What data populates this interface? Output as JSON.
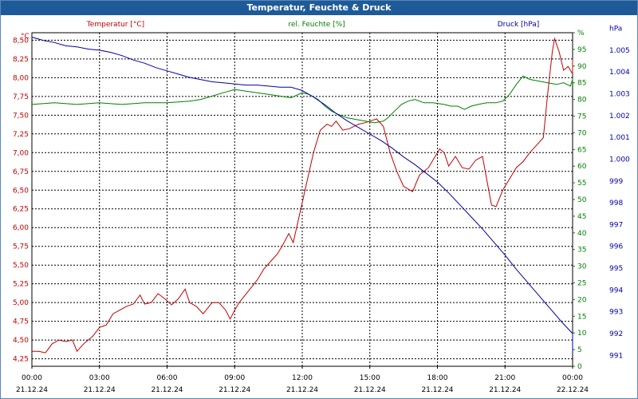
{
  "window": {
    "title": "Temperatur, Feuchte & Druck"
  },
  "colors": {
    "temperature": "#c00000",
    "humidity": "#008000",
    "pressure": "#0000aa",
    "grid": "#000000",
    "titlebar": "#1f5a98"
  },
  "chart_data": {
    "type": "line",
    "title": "Temperatur, Feuchte & Druck",
    "x_ticks": [
      {
        "time": "00:00",
        "date": "21.12.24"
      },
      {
        "time": "03:00",
        "date": "21.12.24"
      },
      {
        "time": "06:00",
        "date": "21.12.24"
      },
      {
        "time": "09:00",
        "date": "21.12.24"
      },
      {
        "time": "12:00",
        "date": "21.12.24"
      },
      {
        "time": "15:00",
        "date": "21.12.24"
      },
      {
        "time": "18:00",
        "date": "21.12.24"
      },
      {
        "time": "21:00",
        "date": "21.12.24"
      },
      {
        "time": "00:00",
        "date": "22.12.24"
      }
    ],
    "x_range_hours": [
      0,
      24
    ],
    "axes": {
      "temperature": {
        "label": "Temperatur [°C]",
        "unit": "°C",
        "range": [
          4.15,
          8.6
        ],
        "ticks": [
          "4,25",
          "4,50",
          "4,75",
          "5,00",
          "5,25",
          "5,50",
          "5,75",
          "6,00",
          "6,25",
          "6,50",
          "6,75",
          "7,00",
          "7,25",
          "7,50",
          "7,75",
          "8,00",
          "8,25",
          "8,50"
        ]
      },
      "humidity": {
        "label": "rel. Feuchte [%]",
        "unit": "%",
        "range": [
          0,
          100
        ],
        "ticks": [
          "0",
          "5",
          "10",
          "15",
          "20",
          "25",
          "30",
          "35",
          "40",
          "45",
          "50",
          "55",
          "60",
          "65",
          "70",
          "75",
          "80",
          "85",
          "90",
          "95",
          "%"
        ]
      },
      "pressure": {
        "label": "Druck [hPa]",
        "unit": "hPa",
        "range": [
          990.5,
          1005.8
        ],
        "ticks": [
          "991",
          "992",
          "993",
          "994",
          "995",
          "996",
          "997",
          "998",
          "999",
          "1.000",
          "1.001",
          "1.002",
          "1.003",
          "1.004",
          "1.005",
          "hPa"
        ]
      }
    },
    "series": [
      {
        "name": "Temperatur",
        "axis": "temperature",
        "points": [
          [
            0,
            4.35
          ],
          [
            0.3,
            4.35
          ],
          [
            0.6,
            4.33
          ],
          [
            0.9,
            4.45
          ],
          [
            1.2,
            4.5
          ],
          [
            1.5,
            4.48
          ],
          [
            1.8,
            4.5
          ],
          [
            2.0,
            4.35
          ],
          [
            2.3,
            4.45
          ],
          [
            2.7,
            4.55
          ],
          [
            3.0,
            4.67
          ],
          [
            3.3,
            4.7
          ],
          [
            3.6,
            4.85
          ],
          [
            3.9,
            4.9
          ],
          [
            4.2,
            4.95
          ],
          [
            4.5,
            4.98
          ],
          [
            4.8,
            5.1
          ],
          [
            5.0,
            4.98
          ],
          [
            5.3,
            5.0
          ],
          [
            5.6,
            5.12
          ],
          [
            5.9,
            5.05
          ],
          [
            6.2,
            4.97
          ],
          [
            6.5,
            5.05
          ],
          [
            6.8,
            5.18
          ],
          [
            7.0,
            5.0
          ],
          [
            7.3,
            4.95
          ],
          [
            7.6,
            4.85
          ],
          [
            8.0,
            5.0
          ],
          [
            8.3,
            5.0
          ],
          [
            8.6,
            4.9
          ],
          [
            8.8,
            4.78
          ],
          [
            9.0,
            4.9
          ],
          [
            9.2,
            5.0
          ],
          [
            9.6,
            5.15
          ],
          [
            10.0,
            5.3
          ],
          [
            10.3,
            5.45
          ],
          [
            10.6,
            5.55
          ],
          [
            10.9,
            5.65
          ],
          [
            11.1,
            5.75
          ],
          [
            11.4,
            5.92
          ],
          [
            11.6,
            5.8
          ],
          [
            11.9,
            6.2
          ],
          [
            12.2,
            6.6
          ],
          [
            12.5,
            7.0
          ],
          [
            12.8,
            7.3
          ],
          [
            13.1,
            7.38
          ],
          [
            13.3,
            7.35
          ],
          [
            13.5,
            7.42
          ],
          [
            13.8,
            7.3
          ],
          [
            14.1,
            7.32
          ],
          [
            14.5,
            7.38
          ],
          [
            14.8,
            7.4
          ],
          [
            15.0,
            7.42
          ],
          [
            15.3,
            7.45
          ],
          [
            15.6,
            7.35
          ],
          [
            15.9,
            7.0
          ],
          [
            16.2,
            6.75
          ],
          [
            16.5,
            6.55
          ],
          [
            16.9,
            6.48
          ],
          [
            17.2,
            6.7
          ],
          [
            17.6,
            6.8
          ],
          [
            17.9,
            6.95
          ],
          [
            18.1,
            7.05
          ],
          [
            18.3,
            7.0
          ],
          [
            18.5,
            6.82
          ],
          [
            18.8,
            6.95
          ],
          [
            19.1,
            6.8
          ],
          [
            19.4,
            6.78
          ],
          [
            19.7,
            6.9
          ],
          [
            20.0,
            6.95
          ],
          [
            20.4,
            6.3
          ],
          [
            20.6,
            6.28
          ],
          [
            20.9,
            6.5
          ],
          [
            21.2,
            6.65
          ],
          [
            21.5,
            6.8
          ],
          [
            21.8,
            6.88
          ],
          [
            22.1,
            7.0
          ],
          [
            22.4,
            7.1
          ],
          [
            22.7,
            7.2
          ],
          [
            22.9,
            7.8
          ],
          [
            23.1,
            8.35
          ],
          [
            23.2,
            8.52
          ],
          [
            23.4,
            8.35
          ],
          [
            23.6,
            8.1
          ],
          [
            23.8,
            8.15
          ],
          [
            24.1,
            8.05
          ],
          [
            24.3,
            8.05
          ],
          [
            24.5,
            8.05
          ],
          [
            24.7,
            8.1
          ],
          [
            24.8,
            8.25
          ]
        ]
      },
      {
        "name": "rel. Feuchte",
        "axis": "humidity",
        "points": [
          [
            0,
            78.5
          ],
          [
            1.0,
            79.0
          ],
          [
            2.0,
            78.5
          ],
          [
            3.0,
            79.0
          ],
          [
            4.0,
            78.5
          ],
          [
            5.0,
            79.0
          ],
          [
            6.0,
            79.0
          ],
          [
            7.0,
            79.5
          ],
          [
            7.5,
            80.0
          ],
          [
            8.0,
            81.0
          ],
          [
            8.5,
            82.0
          ],
          [
            9.0,
            83.0
          ],
          [
            9.5,
            82.5
          ],
          [
            10.0,
            82.0
          ],
          [
            10.5,
            81.5
          ],
          [
            11.0,
            81.0
          ],
          [
            11.5,
            80.5
          ],
          [
            12.0,
            82.0
          ],
          [
            12.3,
            81.5
          ],
          [
            12.7,
            80.0
          ],
          [
            13.0,
            78.0
          ],
          [
            13.3,
            76.5
          ],
          [
            13.6,
            75.5
          ],
          [
            14.0,
            74.5
          ],
          [
            14.4,
            74.0
          ],
          [
            14.8,
            73.5
          ],
          [
            15.2,
            73.0
          ],
          [
            15.6,
            73.5
          ],
          [
            15.8,
            74.5
          ],
          [
            16.1,
            76.5
          ],
          [
            16.4,
            78.5
          ],
          [
            16.7,
            79.5
          ],
          [
            17.0,
            80.0
          ],
          [
            17.4,
            79.0
          ],
          [
            17.8,
            79.0
          ],
          [
            18.3,
            78.5
          ],
          [
            18.6,
            78.0
          ],
          [
            18.9,
            78.0
          ],
          [
            19.2,
            77.0
          ],
          [
            19.5,
            78.0
          ],
          [
            19.8,
            78.5
          ],
          [
            20.2,
            79.0
          ],
          [
            20.6,
            79.0
          ],
          [
            20.9,
            79.5
          ],
          [
            21.2,
            81.5
          ],
          [
            21.5,
            84.5
          ],
          [
            21.8,
            87.0
          ],
          [
            22.1,
            86.0
          ],
          [
            22.5,
            85.5
          ],
          [
            22.9,
            85.0
          ],
          [
            23.3,
            84.5
          ],
          [
            23.6,
            85.0
          ],
          [
            23.9,
            84.0
          ],
          [
            24.2,
            86.0
          ],
          [
            24.5,
            85.5
          ],
          [
            24.7,
            86.5
          ],
          [
            24.9,
            85.0
          ]
        ]
      },
      {
        "name": "Druck",
        "axis": "pressure",
        "points": [
          [
            0,
            1005.6
          ],
          [
            0.5,
            1005.45
          ],
          [
            1.0,
            1005.35
          ],
          [
            1.5,
            1005.2
          ],
          [
            2.0,
            1005.15
          ],
          [
            2.5,
            1005.05
          ],
          [
            3.0,
            1005.0
          ],
          [
            3.5,
            1004.9
          ],
          [
            4.0,
            1004.75
          ],
          [
            4.5,
            1004.55
          ],
          [
            5.0,
            1004.4
          ],
          [
            5.5,
            1004.2
          ],
          [
            6.0,
            1004.05
          ],
          [
            6.5,
            1003.9
          ],
          [
            7.0,
            1003.75
          ],
          [
            7.5,
            1003.65
          ],
          [
            8.0,
            1003.55
          ],
          [
            8.5,
            1003.5
          ],
          [
            9.0,
            1003.45
          ],
          [
            9.5,
            1003.4
          ],
          [
            10.0,
            1003.4
          ],
          [
            10.5,
            1003.35
          ],
          [
            11.0,
            1003.3
          ],
          [
            11.5,
            1003.3
          ],
          [
            12.0,
            1003.15
          ],
          [
            12.5,
            1002.85
          ],
          [
            13.0,
            1002.5
          ],
          [
            13.5,
            1002.1
          ],
          [
            14.0,
            1001.75
          ],
          [
            14.5,
            1001.45
          ],
          [
            15.0,
            1001.15
          ],
          [
            15.5,
            1000.85
          ],
          [
            16.0,
            1000.5
          ],
          [
            16.5,
            1000.1
          ],
          [
            17.0,
            999.75
          ],
          [
            17.5,
            999.35
          ],
          [
            18.0,
            998.95
          ],
          [
            18.5,
            998.45
          ],
          [
            19.0,
            997.9
          ],
          [
            19.5,
            997.35
          ],
          [
            20.0,
            996.8
          ],
          [
            20.5,
            996.2
          ],
          [
            21.0,
            995.6
          ],
          [
            21.5,
            994.95
          ],
          [
            22.0,
            994.35
          ],
          [
            22.5,
            993.75
          ],
          [
            23.0,
            993.15
          ],
          [
            23.5,
            992.55
          ],
          [
            24.0,
            992.0
          ],
          [
            24.5,
            991.5
          ],
          [
            24.9,
            991.1
          ]
        ]
      }
    ]
  }
}
